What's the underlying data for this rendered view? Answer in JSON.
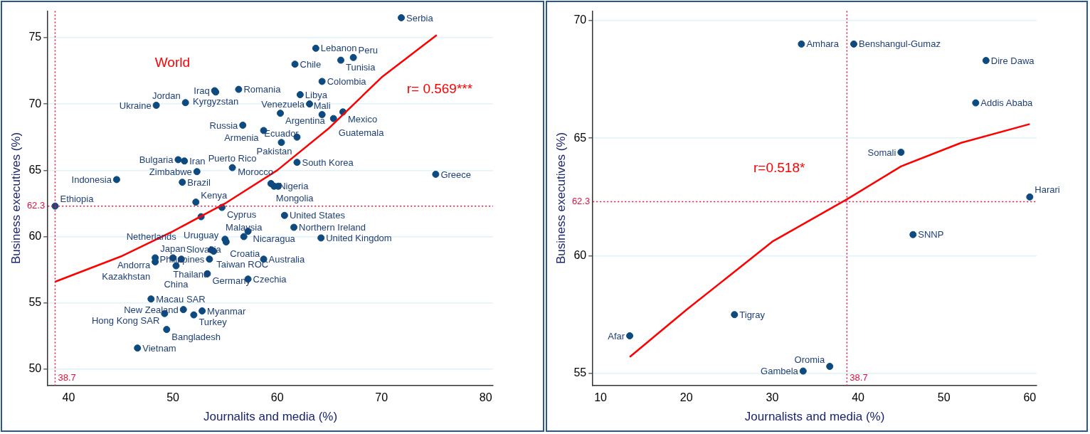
{
  "chart_data": [
    {
      "type": "scatter",
      "xlabel": "Journalits and media (%)",
      "ylabel": "Business executives (%)",
      "xlim": [
        38,
        80.7
      ],
      "ylim": [
        48.8,
        77
      ],
      "xticks": [
        40,
        50,
        60,
        70,
        80
      ],
      "yticks": [
        50,
        55,
        60,
        65,
        70,
        75
      ],
      "grid": "y",
      "series": [
        {
          "color": "#0d4a80",
          "marker": "circle",
          "x": [
            71.9,
            63.7,
            61.7,
            66.1,
            67.3,
            64.3,
            56.3,
            54.0,
            54.1,
            62.2,
            63.1,
            48.4,
            51.2,
            60.3,
            66.3,
            64.3,
            65.4,
            56.7,
            58.7,
            61.9,
            60.4,
            61.9,
            75.2,
            50.5,
            51.1,
            52.3,
            55.7,
            44.6,
            50.9,
            38.7,
            52.2,
            54.7,
            52.7,
            59.4,
            59.7,
            60.1,
            60.7,
            61.6,
            64.2,
            58.7,
            57.2,
            56.8,
            55.0,
            55.1,
            53.7,
            53.9,
            53.5,
            48.3,
            48.3,
            50.0,
            50.8,
            50.3,
            53.3,
            57.2,
            47.9,
            51.0,
            52.8,
            49.2,
            52.0,
            49.4,
            46.6
          ],
          "values": [
            76.5,
            74.2,
            73.0,
            73.3,
            73.5,
            71.7,
            71.1,
            71.0,
            70.9,
            70.7,
            70.0,
            69.9,
            70.1,
            69.3,
            69.4,
            69.2,
            68.9,
            68.4,
            68.0,
            67.5,
            67.1,
            65.6,
            64.7,
            65.8,
            65.7,
            64.9,
            65.2,
            64.3,
            64.1,
            62.3,
            62.6,
            62.2,
            61.5,
            64.0,
            63.8,
            63.8,
            61.6,
            60.7,
            59.9,
            58.3,
            60.4,
            60.0,
            59.8,
            59.6,
            59.0,
            58.9,
            58.3,
            58.4,
            58.1,
            58.4,
            58.3,
            57.8,
            57.2,
            56.8,
            55.3,
            54.5,
            54.4,
            54.2,
            54.1,
            53.0,
            51.6
          ]
        },
        {
          "type": "line",
          "color": "#ff0000",
          "marker": "none",
          "line_style": "solid",
          "x": [
            38.7,
            45,
            50,
            55,
            60,
            65,
            70,
            75.3
          ],
          "values": [
            56.6,
            58.5,
            60.4,
            62.5,
            65.0,
            68.2,
            72.0,
            75.2
          ]
        }
      ],
      "ref_lines": [
        {
          "axis": "y",
          "value": 62.3,
          "label": "62.3",
          "color": "#e0103c",
          "line_style": "dotted"
        },
        {
          "axis": "x",
          "value": 38.7,
          "label": "38.7",
          "color": "#e0103c",
          "line_style": "dotted"
        }
      ],
      "annotations": [
        "World",
        "r= 0.569***",
        {
          "text": "Serbia",
          "x": 71.9,
          "y": 76.5
        },
        {
          "text": "Lebanon",
          "x": 63.7,
          "y": 74.2
        },
        {
          "text": "Chile",
          "x": 61.7,
          "y": 73.0
        },
        {
          "text": "Tunisia",
          "x": 66.1,
          "y": 73.3
        },
        {
          "text": "Peru",
          "x": 67.3,
          "y": 73.5
        },
        {
          "text": "Colombia",
          "x": 64.3,
          "y": 71.7
        },
        {
          "text": "Romania",
          "x": 56.3,
          "y": 71.1
        },
        {
          "text": "Iraq",
          "x": 54.0,
          "y": 71.0
        },
        {
          "text": "Kyrgyzstan",
          "x": 54.1,
          "y": 70.9
        },
        {
          "text": "Libya",
          "x": 62.2,
          "y": 70.7
        },
        {
          "text": "Venezuela",
          "x": 63.1,
          "y": 70.0
        },
        {
          "text": "Ukraine",
          "x": 48.4,
          "y": 69.9
        },
        {
          "text": "Jordan",
          "x": 51.2,
          "y": 70.1
        },
        {
          "text": "Argentina",
          "x": 60.3,
          "y": 69.3
        },
        {
          "text": "Mexico",
          "x": 66.3,
          "y": 69.4
        },
        {
          "text": "Mali",
          "x": 64.3,
          "y": 69.2
        },
        {
          "text": "Guatemala",
          "x": 65.4,
          "y": 68.9
        },
        {
          "text": "Russia",
          "x": 56.7,
          "y": 68.4
        },
        {
          "text": "Armenia",
          "x": 58.7,
          "y": 68.0
        },
        {
          "text": "Pakistan",
          "x": 61.9,
          "y": 67.5
        },
        {
          "text": "Ecuador",
          "x": 60.4,
          "y": 67.1
        },
        {
          "text": "South Korea",
          "x": 61.9,
          "y": 65.6
        },
        {
          "text": "Greece",
          "x": 75.2,
          "y": 64.7
        },
        {
          "text": "Bulgaria",
          "x": 50.5,
          "y": 65.8
        },
        {
          "text": "Iran",
          "x": 51.1,
          "y": 65.7
        },
        {
          "text": "Zimbabwe",
          "x": 52.3,
          "y": 64.9
        },
        {
          "text": "Puerto Rico",
          "x": 55.7,
          "y": 65.2
        },
        {
          "text": "Indonesia",
          "x": 44.6,
          "y": 64.3
        },
        {
          "text": "Brazil",
          "x": 50.9,
          "y": 64.1
        },
        {
          "text": "Ethiopia",
          "x": 38.7,
          "y": 62.3
        },
        {
          "text": "Kenya",
          "x": 52.2,
          "y": 62.6
        },
        {
          "text": "Cyprus",
          "x": 54.7,
          "y": 62.2
        },
        {
          "text": "Uruguay",
          "x": 52.7,
          "y": 61.5
        },
        {
          "text": "Mongolia",
          "x": 59.4,
          "y": 64.0
        },
        {
          "text": "Nigeria",
          "x": 59.7,
          "y": 63.8
        },
        {
          "text": "Morocco",
          "x": 60.1,
          "y": 63.8
        },
        {
          "text": "United States",
          "x": 60.7,
          "y": 61.6
        },
        {
          "text": "Northern Ireland",
          "x": 61.6,
          "y": 60.7
        },
        {
          "text": "United Kingdom",
          "x": 64.2,
          "y": 59.9
        },
        {
          "text": "Australia",
          "x": 58.7,
          "y": 58.3
        },
        {
          "text": "Nicaragua",
          "x": 57.2,
          "y": 60.4
        },
        {
          "text": "Malaysia",
          "x": 56.8,
          "y": 60.0
        },
        {
          "text": "Croatia",
          "x": 55.0,
          "y": 59.8
        },
        {
          "text": "Slovakia",
          "x": 55.1,
          "y": 59.6
        },
        {
          "text": "Taiwan ROC",
          "x": 53.7,
          "y": 59.0
        },
        {
          "text": "Thailand",
          "x": 53.9,
          "y": 58.9
        },
        {
          "text": "Philippines",
          "x": 53.5,
          "y": 58.3
        },
        {
          "text": "Andorra",
          "x": 48.3,
          "y": 58.4
        },
        {
          "text": "Kazakhstan",
          "x": 48.3,
          "y": 58.1
        },
        {
          "text": "Japan",
          "x": 50.0,
          "y": 58.4
        },
        {
          "text": "Netherlands",
          "x": 50.8,
          "y": 58.3
        },
        {
          "text": "China",
          "x": 50.3,
          "y": 57.8
        },
        {
          "text": "Germany",
          "x": 53.3,
          "y": 57.2
        },
        {
          "text": "Czechia",
          "x": 57.2,
          "y": 56.8
        },
        {
          "text": "Macau SAR",
          "x": 47.9,
          "y": 55.3
        },
        {
          "text": "New Zealand",
          "x": 51.0,
          "y": 54.5
        },
        {
          "text": "Myanmar",
          "x": 52.8,
          "y": 54.4
        },
        {
          "text": "Hong Kong SAR",
          "x": 49.2,
          "y": 54.2
        },
        {
          "text": "Turkey",
          "x": 52.0,
          "y": 54.1
        },
        {
          "text": "Bangladesh",
          "x": 49.4,
          "y": 53.0
        },
        {
          "text": "Vietnam",
          "x": 46.6,
          "y": 51.6
        }
      ]
    },
    {
      "type": "scatter",
      "xlabel": "Journalists and media (%)",
      "ylabel": "Business executives (%)",
      "xlim": [
        9.1,
        60.8
      ],
      "ylim": [
        54.5,
        70.4
      ],
      "xticks": [
        10,
        20,
        30,
        40,
        50,
        60
      ],
      "yticks": [
        55,
        60,
        65,
        70
      ],
      "grid": "y",
      "series": [
        {
          "color": "#0d4a80",
          "marker": "circle",
          "x": [
            33.4,
            39.5,
            54.9,
            53.7,
            45.0,
            60.0,
            46.4,
            25.6,
            13.4,
            33.6,
            36.7
          ],
          "values": [
            69.0,
            69.0,
            68.3,
            66.5,
            64.4,
            62.5,
            60.9,
            57.5,
            56.6,
            55.1,
            55.3
          ]
        },
        {
          "type": "line",
          "color": "#ff0000",
          "marker": "none",
          "line_style": "solid",
          "x": [
            13.4,
            20,
            30,
            38.7,
            45,
            52,
            60
          ],
          "values": [
            55.7,
            57.7,
            60.6,
            62.4,
            63.8,
            64.8,
            65.6
          ]
        }
      ],
      "ref_lines": [
        {
          "axis": "y",
          "value": 62.3,
          "label": "62.3",
          "color": "#e0103c",
          "line_style": "dotted"
        },
        {
          "axis": "x",
          "value": 38.7,
          "label": "38.7",
          "color": "#e0103c",
          "line_style": "dotted"
        }
      ],
      "annotations": [
        "r=0.518*",
        {
          "text": "Amhara",
          "x": 33.4,
          "y": 69.0
        },
        {
          "text": "Benshangul-Gumaz",
          "x": 39.5,
          "y": 69.0
        },
        {
          "text": "Dire Dawa",
          "x": 54.9,
          "y": 68.3
        },
        {
          "text": "Addis Ababa",
          "x": 53.7,
          "y": 66.5
        },
        {
          "text": "Somali",
          "x": 45.0,
          "y": 64.4
        },
        {
          "text": "Harari",
          "x": 60.0,
          "y": 62.5
        },
        {
          "text": "SNNP",
          "x": 46.4,
          "y": 60.9
        },
        {
          "text": "Tigray",
          "x": 25.6,
          "y": 57.5
        },
        {
          "text": "Afar",
          "x": 13.4,
          "y": 56.6
        },
        {
          "text": "Gambela",
          "x": 33.6,
          "y": 55.1
        },
        {
          "text": "Oromia",
          "x": 36.7,
          "y": 55.3
        }
      ]
    }
  ]
}
